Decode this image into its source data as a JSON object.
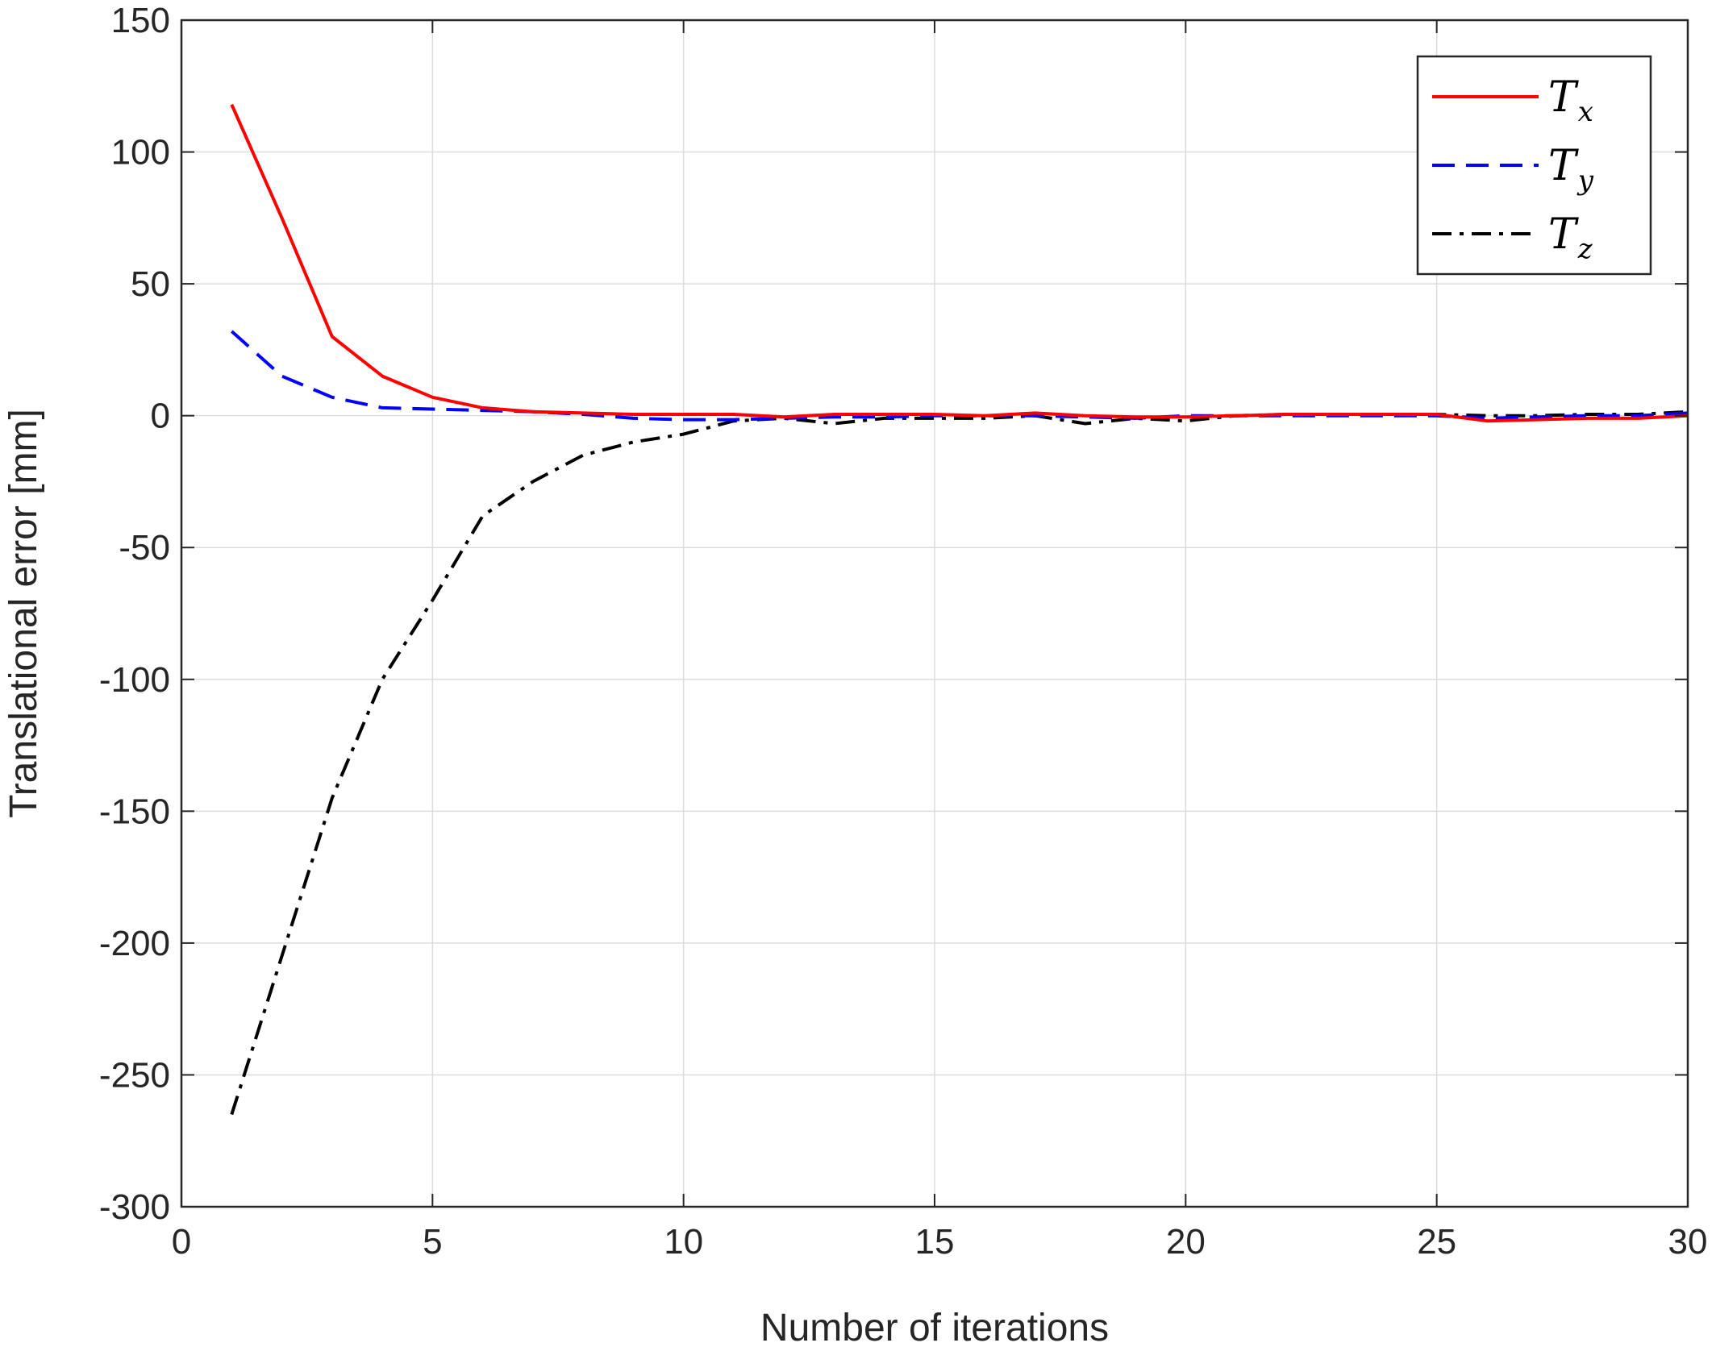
{
  "chart_data": {
    "type": "line",
    "title": "",
    "xlabel": "Number of iterations",
    "ylabel": "Translational error [mm]",
    "xlim": [
      0,
      30
    ],
    "ylim": [
      -300,
      150
    ],
    "xticks": [
      0,
      5,
      10,
      15,
      20,
      25,
      30
    ],
    "yticks": [
      -300,
      -250,
      -200,
      -150,
      -100,
      -50,
      0,
      50,
      100,
      150
    ],
    "grid": true,
    "legend_position": "top-right",
    "series": [
      {
        "name": "T",
        "subscript": "x",
        "color": "#ff0000",
        "style": "solid",
        "x": [
          1,
          2,
          3,
          4,
          5,
          6,
          7,
          8,
          9,
          10,
          11,
          12,
          13,
          14,
          15,
          16,
          17,
          18,
          19,
          20,
          21,
          22,
          23,
          24,
          25,
          26,
          27,
          28,
          29,
          30
        ],
        "y": [
          118,
          75,
          30,
          15,
          7,
          3,
          1.5,
          1,
          0.5,
          0.5,
          0.5,
          -0.5,
          0.5,
          0.5,
          0.5,
          0,
          1,
          0,
          -0.5,
          -0.5,
          0,
          0.5,
          0.5,
          0.5,
          0.5,
          -2,
          -1.5,
          -1,
          -1,
          0
        ]
      },
      {
        "name": "T",
        "subscript": "y",
        "color": "#0000ff",
        "style": "dashed",
        "x": [
          1,
          2,
          3,
          4,
          5,
          6,
          7,
          8,
          9,
          10,
          11,
          12,
          13,
          14,
          15,
          16,
          17,
          18,
          19,
          20,
          21,
          22,
          23,
          24,
          25,
          26,
          27,
          28,
          29,
          30
        ],
        "y": [
          32,
          15,
          7,
          3,
          2.5,
          2,
          1.5,
          0.5,
          -1,
          -1.5,
          -1.5,
          -1,
          -0.5,
          -0.5,
          0,
          0,
          0,
          -0.5,
          -1,
          0,
          0,
          0,
          0,
          0,
          0,
          -1,
          -0.5,
          0,
          0,
          1
        ]
      },
      {
        "name": "T",
        "subscript": "z",
        "color": "#000000",
        "style": "dashdot",
        "x": [
          1,
          2,
          3,
          4,
          5,
          6,
          7,
          8,
          9,
          10,
          11,
          12,
          13,
          14,
          15,
          16,
          17,
          18,
          19,
          20,
          21,
          22,
          23,
          24,
          25,
          26,
          27,
          28,
          29,
          30
        ],
        "y": [
          -265,
          -205,
          -145,
          -100,
          -70,
          -38,
          -25,
          -15,
          -10,
          -7,
          -2,
          -1,
          -3,
          -1,
          -1,
          -1,
          0,
          -3,
          -1,
          -2,
          0,
          0.5,
          0.5,
          0.5,
          0.5,
          0,
          0,
          0.5,
          0.5,
          1.5
        ]
      }
    ]
  }
}
